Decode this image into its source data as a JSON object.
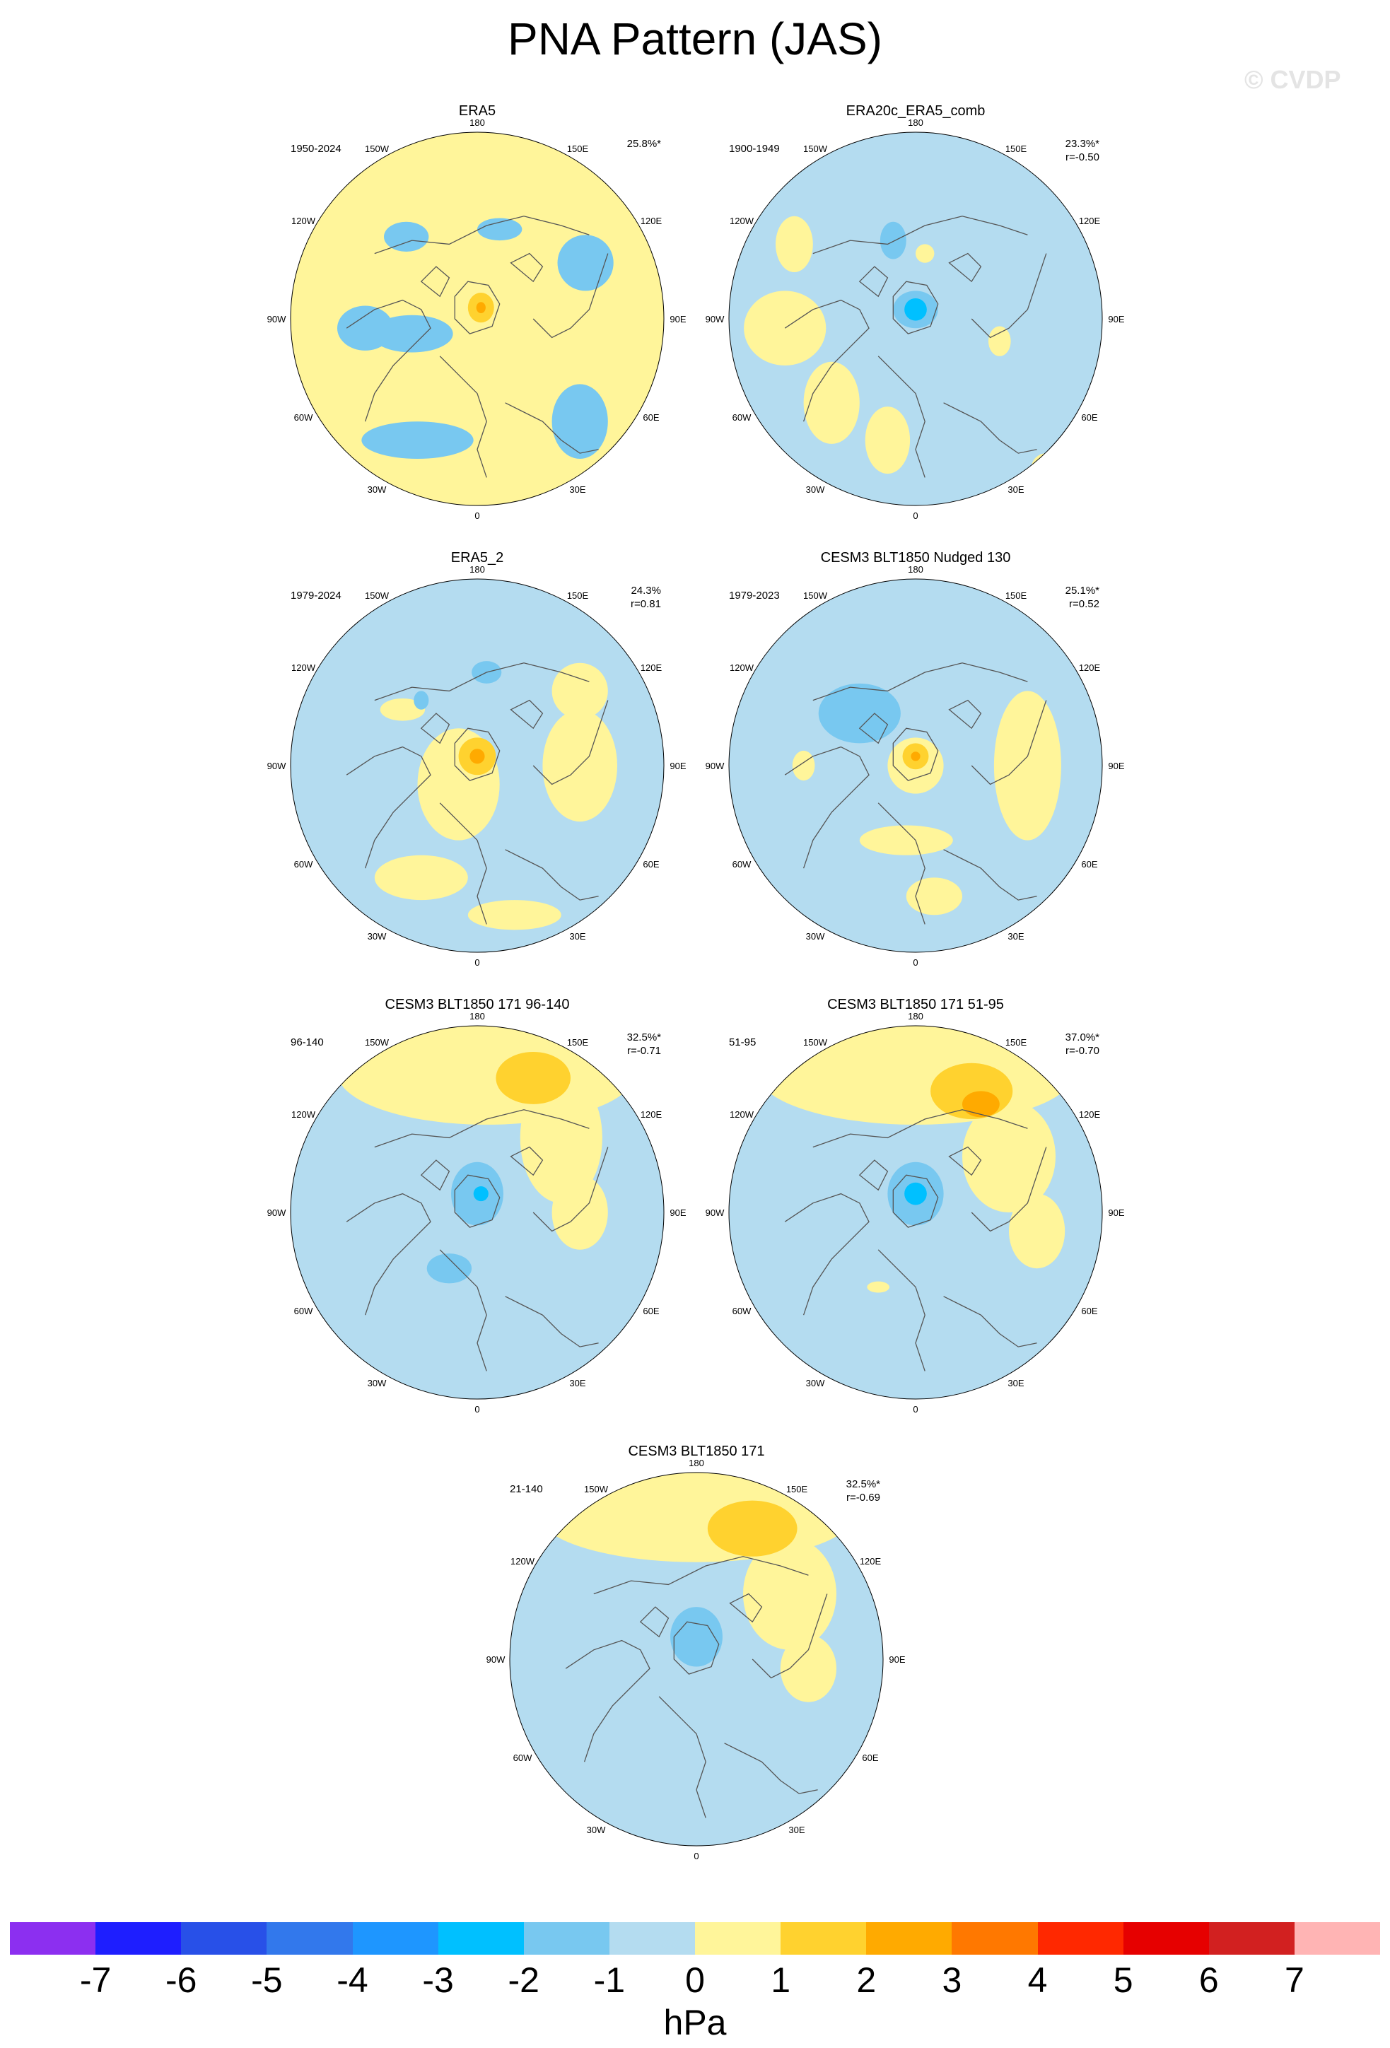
{
  "title": "PNA Pattern (JAS)",
  "watermark": "© CVDP",
  "colors": {
    "ocean_base": "#b4dcf0",
    "coast": "#555555"
  },
  "lon_labels": [
    "180",
    "150E",
    "120E",
    "90E",
    "60E",
    "30E",
    "0",
    "30W",
    "60W",
    "90W",
    "120W",
    "150W"
  ],
  "panels": [
    {
      "title": "ERA5",
      "years": "1950-2024",
      "stat1": "25.8%*",
      "stat2": "",
      "base": "#fff59a",
      "blobs": [
        {
          "lx": -0.35,
          "ly": 0.08,
          "rx": 0.22,
          "ry": 0.1,
          "level": "-1"
        },
        {
          "lx": 0.12,
          "ly": -0.48,
          "rx": 0.12,
          "ry": 0.06,
          "level": "-1"
        },
        {
          "lx": -0.6,
          "ly": 0.05,
          "rx": 0.15,
          "ry": 0.12,
          "level": "-1"
        },
        {
          "lx": 0.58,
          "ly": -0.3,
          "rx": 0.15,
          "ry": 0.15,
          "level": "-1"
        },
        {
          "lx": 0.05,
          "ly": -0.15,
          "rx": 0.16,
          "ry": 0.2,
          "level": "1"
        },
        {
          "lx": 0.02,
          "ly": -0.06,
          "rx": 0.07,
          "ry": 0.08,
          "level": "2"
        },
        {
          "lx": 0.02,
          "ly": -0.06,
          "rx": 0.025,
          "ry": 0.03,
          "level": "3"
        },
        {
          "lx": -0.32,
          "ly": 0.65,
          "rx": 0.3,
          "ry": 0.1,
          "level": "-1"
        },
        {
          "lx": 0.55,
          "ly": 0.55,
          "rx": 0.15,
          "ry": 0.2,
          "level": "-1"
        },
        {
          "lx": -0.38,
          "ly": -0.44,
          "rx": 0.12,
          "ry": 0.08,
          "level": "-1"
        }
      ]
    },
    {
      "title": "ERA20c_ERA5_comb",
      "years": "1900-1949",
      "stat1": "23.3%*",
      "stat2": "r=-0.50",
      "base": "#b4dcf0",
      "blobs": [
        {
          "lx": -0.7,
          "ly": 0.05,
          "rx": 0.22,
          "ry": 0.2,
          "level": "1"
        },
        {
          "lx": -0.45,
          "ly": 0.45,
          "rx": 0.15,
          "ry": 0.22,
          "level": "1"
        },
        {
          "lx": -0.15,
          "ly": 0.65,
          "rx": 0.12,
          "ry": 0.18,
          "level": "1"
        },
        {
          "lx": 0.7,
          "ly": 0.8,
          "rx": 0.08,
          "ry": 0.08,
          "level": "1"
        },
        {
          "lx": 0.45,
          "ly": 0.12,
          "rx": 0.06,
          "ry": 0.08,
          "level": "1"
        },
        {
          "lx": -0.65,
          "ly": -0.4,
          "rx": 0.1,
          "ry": 0.15,
          "level": "1"
        },
        {
          "lx": 0.05,
          "ly": -0.35,
          "rx": 0.05,
          "ry": 0.05,
          "level": "1"
        },
        {
          "lx": 0.0,
          "ly": -0.05,
          "rx": 0.12,
          "ry": 0.1,
          "level": "-1"
        },
        {
          "lx": 0.0,
          "ly": -0.05,
          "rx": 0.06,
          "ry": 0.06,
          "level": "-2"
        },
        {
          "lx": -0.12,
          "ly": -0.42,
          "rx": 0.07,
          "ry": 0.1,
          "level": "-1"
        }
      ]
    },
    {
      "title": "ERA5_2",
      "years": "1979-2024",
      "stat1": "24.3%",
      "stat2": "r=0.81",
      "base": "#b4dcf0",
      "blobs": [
        {
          "lx": -0.1,
          "ly": 0.1,
          "rx": 0.22,
          "ry": 0.3,
          "level": "1"
        },
        {
          "lx": -0.3,
          "ly": 0.6,
          "rx": 0.25,
          "ry": 0.12,
          "level": "1"
        },
        {
          "lx": 0.55,
          "ly": 0.0,
          "rx": 0.2,
          "ry": 0.3,
          "level": "1"
        },
        {
          "lx": 0.55,
          "ly": -0.4,
          "rx": 0.15,
          "ry": 0.15,
          "level": "1"
        },
        {
          "lx": 0.2,
          "ly": 0.8,
          "rx": 0.25,
          "ry": 0.08,
          "level": "1"
        },
        {
          "lx": -0.4,
          "ly": -0.3,
          "rx": 0.12,
          "ry": 0.06,
          "level": "1"
        },
        {
          "lx": 0.0,
          "ly": -0.05,
          "rx": 0.1,
          "ry": 0.1,
          "level": "2"
        },
        {
          "lx": 0.0,
          "ly": -0.05,
          "rx": 0.04,
          "ry": 0.04,
          "level": "3"
        },
        {
          "lx": 0.05,
          "ly": -0.5,
          "rx": 0.08,
          "ry": 0.06,
          "level": "-1"
        },
        {
          "lx": -0.3,
          "ly": -0.35,
          "rx": 0.04,
          "ry": 0.05,
          "level": "-1"
        }
      ]
    },
    {
      "title": "CESM3 BLT1850 Nudged 130",
      "years": "1979-2023",
      "stat1": "25.1%*",
      "stat2": "r=0.52",
      "base": "#b4dcf0",
      "blobs": [
        {
          "lx": 0.0,
          "ly": 0.0,
          "rx": 0.15,
          "ry": 0.15,
          "level": "1"
        },
        {
          "lx": 0.0,
          "ly": -0.05,
          "rx": 0.07,
          "ry": 0.07,
          "level": "2"
        },
        {
          "lx": 0.0,
          "ly": -0.05,
          "rx": 0.025,
          "ry": 0.025,
          "level": "3"
        },
        {
          "lx": 0.6,
          "ly": 0.0,
          "rx": 0.18,
          "ry": 0.4,
          "level": "1"
        },
        {
          "lx": -0.05,
          "ly": 0.4,
          "rx": 0.25,
          "ry": 0.08,
          "level": "1"
        },
        {
          "lx": 0.1,
          "ly": 0.7,
          "rx": 0.15,
          "ry": 0.1,
          "level": "1"
        },
        {
          "lx": -0.3,
          "ly": -0.28,
          "rx": 0.22,
          "ry": 0.16,
          "level": "-1"
        },
        {
          "lx": -0.6,
          "ly": 0.0,
          "rx": 0.06,
          "ry": 0.08,
          "level": "1"
        }
      ]
    },
    {
      "title": "CESM3 BLT1850 171 96-140",
      "years": "96-140",
      "stat1": "32.5%*",
      "stat2": "r=-0.71",
      "base": "#b4dcf0",
      "blobs": [
        {
          "lx": 0.05,
          "ly": -0.75,
          "rx": 0.8,
          "ry": 0.28,
          "level": "1"
        },
        {
          "lx": 0.45,
          "ly": -0.4,
          "rx": 0.22,
          "ry": 0.35,
          "level": "1"
        },
        {
          "lx": 0.55,
          "ly": 0.0,
          "rx": 0.15,
          "ry": 0.2,
          "level": "1"
        },
        {
          "lx": 0.3,
          "ly": -0.72,
          "rx": 0.2,
          "ry": 0.14,
          "level": "2"
        },
        {
          "lx": 0.0,
          "ly": -0.1,
          "rx": 0.14,
          "ry": 0.17,
          "level": "-1"
        },
        {
          "lx": 0.02,
          "ly": -0.1,
          "rx": 0.04,
          "ry": 0.04,
          "level": "-2"
        },
        {
          "lx": -0.15,
          "ly": 0.3,
          "rx": 0.12,
          "ry": 0.08,
          "level": "-1"
        }
      ]
    },
    {
      "title": "CESM3 BLT1850 171 51-95",
      "years": "51-95",
      "stat1": "37.0%*",
      "stat2": "r=-0.70",
      "base": "#b4dcf0",
      "blobs": [
        {
          "lx": 0.0,
          "ly": -0.75,
          "rx": 0.85,
          "ry": 0.28,
          "level": "1"
        },
        {
          "lx": 0.5,
          "ly": -0.3,
          "rx": 0.25,
          "ry": 0.3,
          "level": "1"
        },
        {
          "lx": 0.65,
          "ly": 0.1,
          "rx": 0.15,
          "ry": 0.2,
          "level": "1"
        },
        {
          "lx": 0.3,
          "ly": -0.65,
          "rx": 0.22,
          "ry": 0.15,
          "level": "2"
        },
        {
          "lx": 0.35,
          "ly": -0.58,
          "rx": 0.1,
          "ry": 0.07,
          "level": "3"
        },
        {
          "lx": 0.0,
          "ly": -0.1,
          "rx": 0.15,
          "ry": 0.17,
          "level": "-1"
        },
        {
          "lx": 0.0,
          "ly": -0.1,
          "rx": 0.06,
          "ry": 0.06,
          "level": "-2"
        },
        {
          "lx": -0.2,
          "ly": 0.4,
          "rx": 0.06,
          "ry": 0.03,
          "level": "1"
        }
      ]
    },
    {
      "title": "CESM3 BLT1850 171",
      "years": "21-140",
      "stat1": "32.5%*",
      "stat2": "r=-0.69",
      "base": "#b4dcf0",
      "blobs": [
        {
          "lx": 0.0,
          "ly": -0.78,
          "rx": 0.85,
          "ry": 0.26,
          "level": "1"
        },
        {
          "lx": 0.5,
          "ly": -0.35,
          "rx": 0.25,
          "ry": 0.3,
          "level": "1"
        },
        {
          "lx": 0.6,
          "ly": 0.05,
          "rx": 0.15,
          "ry": 0.18,
          "level": "1"
        },
        {
          "lx": 0.3,
          "ly": -0.7,
          "rx": 0.24,
          "ry": 0.15,
          "level": "2"
        },
        {
          "lx": 0.0,
          "ly": -0.12,
          "rx": 0.14,
          "ry": 0.16,
          "level": "-1"
        }
      ]
    }
  ],
  "colorbar": {
    "colors": [
      "#8c2ff0",
      "#1e1eff",
      "#2850e8",
      "#3278ec",
      "#1e96ff",
      "#00c0ff",
      "#78c8f0",
      "#b4dcf0",
      "#fff59a",
      "#ffd22f",
      "#ffaa00",
      "#ff7800",
      "#ff2800",
      "#e60000",
      "#d22020",
      "#ffb4b4"
    ],
    "ticks": [
      "-7",
      "-6",
      "-5",
      "-4",
      "-3",
      "-2",
      "-1",
      "0",
      "1",
      "2",
      "3",
      "4",
      "5",
      "6",
      "7"
    ],
    "units": "hPa"
  }
}
